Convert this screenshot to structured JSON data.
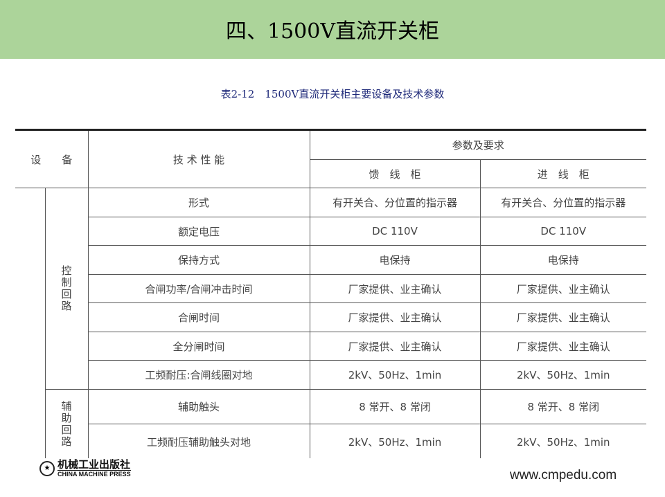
{
  "title": "四、1500V直流开关柜",
  "caption": "表2-12　1500V直流开关柜主要设备及技术参数",
  "table": {
    "headers": {
      "device": "设　　备",
      "performance": "技 术 性 能",
      "params": "参数及要求",
      "feeder": "馈　线　柜",
      "incoming": "进　线　柜"
    },
    "groups": [
      {
        "label": "控制回路",
        "rows": [
          [
            "形式",
            "有开关合、分位置的指示器",
            "有开关合、分位置的指示器"
          ],
          [
            "额定电压",
            "DC 110V",
            "DC 110V"
          ],
          [
            "保持方式",
            "电保持",
            "电保持"
          ],
          [
            "合闸功率/合闸冲击时间",
            "厂家提供、业主确认",
            "厂家提供、业主确认"
          ],
          [
            "合闸时间",
            "厂家提供、业主确认",
            "厂家提供、业主确认"
          ],
          [
            "全分闸时间",
            "厂家提供、业主确认",
            "厂家提供、业主确认"
          ],
          [
            "工频耐压:合闸线圈对地",
            "2kV、50Hz、1min",
            "2kV、50Hz、1min"
          ]
        ]
      },
      {
        "label": "辅助回路",
        "rows": [
          [
            "辅助触头",
            "8 常开、8 常闭",
            "8 常开、8 常闭"
          ],
          [
            "工频耐压辅助触头对地",
            "2kV、50Hz、1min",
            "2kV、50Hz、1min"
          ]
        ]
      }
    ]
  },
  "footer": {
    "publisher_cn": "机械工业出版社",
    "publisher_en": "CHINA MACHINE PRESS",
    "url": "www.cmpedu.com"
  },
  "colors": {
    "banner": "#acd49a",
    "caption": "#1f2a7a"
  }
}
